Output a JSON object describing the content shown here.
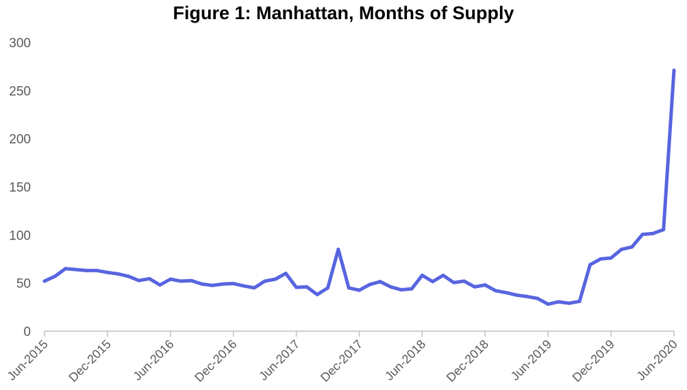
{
  "chart_data": {
    "type": "line",
    "title": "Figure 1: Manhattan, Months of Supply",
    "xlabel": "",
    "ylabel": "",
    "ylim": [
      0,
      300
    ],
    "yticks": [
      0,
      50,
      100,
      150,
      200,
      250,
      300
    ],
    "xticks": [
      "Jun-2015",
      "Dec-2015",
      "Jun-2016",
      "Dec-2016",
      "Jun-2017",
      "Dec-2017",
      "Jun-2018",
      "Dec-2018",
      "Jun-2019",
      "Dec-2019",
      "Jun-2020"
    ],
    "grid": false,
    "line_color": "#5865e0",
    "series": [
      {
        "x": [
          "Jun-2015",
          "Jul-2015",
          "Aug-2015",
          "Sep-2015",
          "Oct-2015",
          "Nov-2015",
          "Dec-2015",
          "Jan-2016",
          "Feb-2016",
          "Mar-2016",
          "Apr-2016",
          "May-2016",
          "Jun-2016",
          "Jul-2016",
          "Aug-2016",
          "Sep-2016",
          "Oct-2016",
          "Nov-2016",
          "Dec-2016",
          "Jan-2017",
          "Feb-2017",
          "Mar-2017",
          "Apr-2017",
          "May-2017",
          "Jun-2017",
          "Jul-2017",
          "Aug-2017",
          "Sep-2017",
          "Oct-2017",
          "Nov-2017",
          "Dec-2017",
          "Jan-2018",
          "Feb-2018",
          "Mar-2018",
          "Apr-2018",
          "May-2018",
          "Jun-2018",
          "Jul-2018",
          "Aug-2018",
          "Sep-2018",
          "Oct-2018",
          "Nov-2018",
          "Dec-2018",
          "Jan-2019",
          "Feb-2019",
          "Mar-2019",
          "Apr-2019",
          "May-2019",
          "Jun-2019",
          "Jul-2019",
          "Aug-2019",
          "Sep-2019",
          "Oct-2019",
          "Nov-2019",
          "Dec-2019",
          "Jan-2020",
          "Feb-2020",
          "Mar-2020",
          "Apr-2020",
          "May-2020",
          "Jun-2020"
        ],
        "values": [
          52,
          57,
          65,
          64,
          63,
          63,
          61,
          59.5,
          57,
          52.5,
          54.5,
          48,
          54,
          52,
          52.5,
          49,
          47.5,
          49,
          49.5,
          47,
          45,
          52,
          54,
          60,
          45.5,
          46,
          38,
          45,
          85,
          45,
          42.5,
          48.5,
          51.5,
          46,
          43,
          44,
          58,
          51.5,
          58,
          50.5,
          52,
          46,
          48,
          42,
          40,
          37.5,
          36,
          34,
          28,
          30.5,
          29,
          31,
          69,
          75,
          76,
          85,
          87.5,
          100.5,
          101.5,
          105.5,
          271
        ]
      }
    ]
  }
}
